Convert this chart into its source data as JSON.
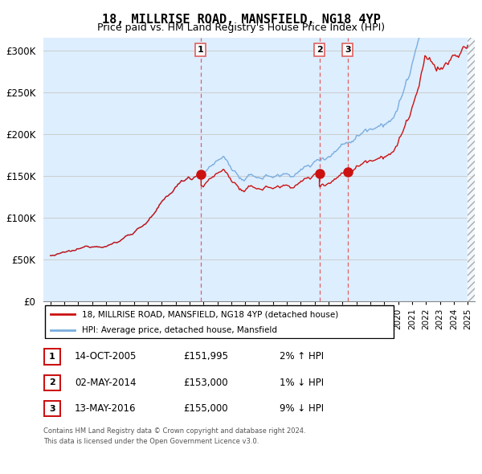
{
  "title": "18, MILLRISE ROAD, MANSFIELD, NG18 4YP",
  "subtitle": "Price paid vs. HM Land Registry's House Price Index (HPI)",
  "title_fontsize": 11,
  "subtitle_fontsize": 9,
  "ylabel_ticks": [
    "£0",
    "£50K",
    "£100K",
    "£150K",
    "£200K",
    "£250K",
    "£300K"
  ],
  "ytick_vals": [
    0,
    50000,
    100000,
    150000,
    200000,
    250000,
    300000
  ],
  "ylim": [
    0,
    315000
  ],
  "xlim_start": 1994.5,
  "xlim_end": 2025.5,
  "legend_line1": "18, MILLRISE ROAD, MANSFIELD, NG18 4YP (detached house)",
  "legend_line2": "HPI: Average price, detached house, Mansfield",
  "transactions": [
    {
      "label": "1",
      "date": 2005.79,
      "price": 151995
    },
    {
      "label": "2",
      "date": 2014.33,
      "price": 153000
    },
    {
      "label": "3",
      "date": 2016.37,
      "price": 155000
    }
  ],
  "table_rows": [
    {
      "num": "1",
      "date": "14-OCT-2005",
      "price": "£151,995",
      "hpi": "2% ↑ HPI"
    },
    {
      "num": "2",
      "date": "02-MAY-2014",
      "price": "£153,000",
      "hpi": "1% ↓ HPI"
    },
    {
      "num": "3",
      "date": "13-MAY-2016",
      "price": "£155,000",
      "hpi": "9% ↓ HPI"
    }
  ],
  "footer1": "Contains HM Land Registry data © Crown copyright and database right 2024.",
  "footer2": "This data is licensed under the Open Government Licence v3.0.",
  "hpi_color": "#7aadde",
  "sale_color": "#cc1111",
  "marker_color": "#cc1111",
  "vline_color": "#e06060",
  "grid_color": "#cccccc",
  "bg_fill_color": "#ddeeff",
  "background_color": "#ffffff",
  "table_box_color": "#cc1111"
}
